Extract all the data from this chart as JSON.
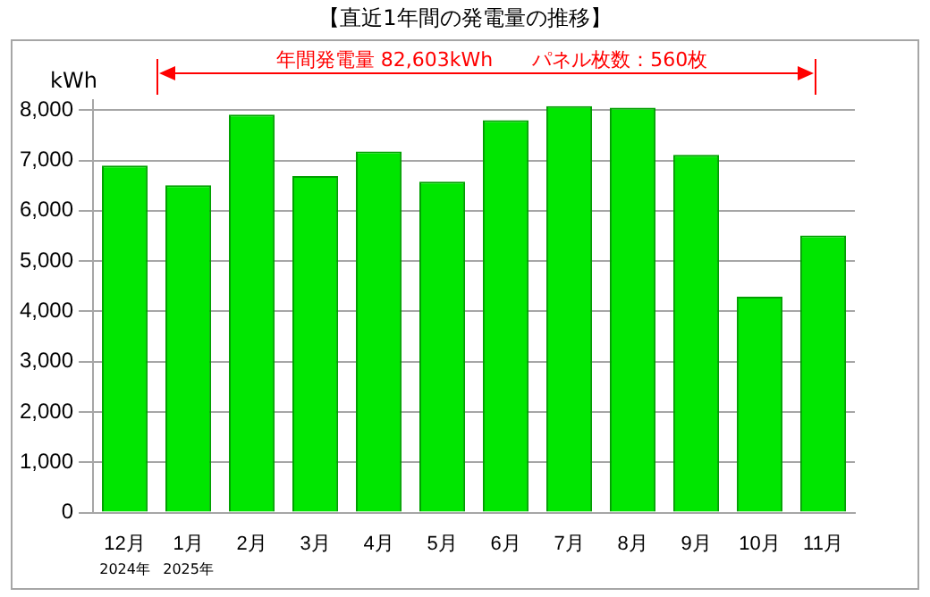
{
  "chart_data": {
    "type": "bar",
    "title": "【直近1年間の発電量の推移】",
    "ylabel": "kWh",
    "categories": [
      "12月\n2024年",
      "1月\n2025年",
      "2月",
      "3月",
      "4月",
      "5月",
      "6月",
      "7月",
      "8月",
      "9月",
      "10月",
      "11月"
    ],
    "values": [
      6900,
      6510,
      7910,
      6690,
      7180,
      6580,
      7800,
      8080,
      8050,
      7110,
      4290,
      5510
    ],
    "color": "#00e600",
    "ylim": [
      0,
      8200
    ],
    "yticks": [
      0,
      {
        "value": 1000,
        "label": "1,000"
      },
      {
        "value": 2000,
        "label": "2,000"
      },
      {
        "value": 3000,
        "label": "3,000"
      },
      {
        "value": 4000,
        "label": "4,000"
      },
      {
        "value": 5000,
        "label": "5,000"
      },
      {
        "value": 6000,
        "label": "6,000"
      },
      {
        "value": 7000,
        "label": "7,000"
      },
      {
        "value": 8000,
        "label": "8,000"
      }
    ],
    "grid": "y",
    "annotations": [
      "年間発電量  82,603kWh　　パネル枚数：560枚"
    ]
  }
}
